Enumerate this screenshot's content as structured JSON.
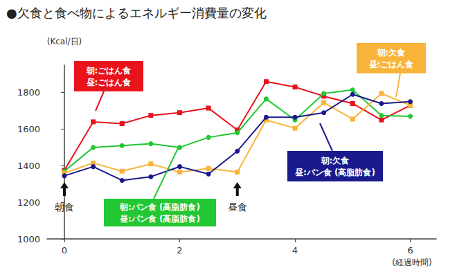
{
  "chart_data": {
    "type": "line",
    "title": "●欠食と食べ物によるエネルギー消費量の変化",
    "y_label": "(Kcal/日)",
    "x_label": "(経過時間)",
    "x": [
      0,
      0.5,
      1,
      1.5,
      2,
      2.5,
      3,
      3.5,
      4,
      4.5,
      5,
      5.5,
      6
    ],
    "xlim": [
      -0.3,
      6.45
    ],
    "xticks": [
      0,
      2,
      4,
      6
    ],
    "ylim": [
      1000,
      1950
    ],
    "yticks": [
      1000,
      1200,
      1400,
      1600,
      1800
    ],
    "grid": false,
    "series": [
      {
        "name": "朝:ごはん食\n昼:ごはん食",
        "color": "#e8131b",
        "marker": "square",
        "values": [
          1375,
          1640,
          1630,
          1675,
          1690,
          1715,
          1595,
          1860,
          1830,
          1780,
          1740,
          1650,
          1730
        ]
      },
      {
        "name": "朝:パン食 (高脂肪食)\n昼:パン食 (高脂肪食)",
        "color": "#22c733",
        "marker": "circle",
        "values": [
          1370,
          1500,
          1510,
          1520,
          1500,
          1555,
          1580,
          1765,
          1650,
          1795,
          1815,
          1675,
          1670
        ]
      },
      {
        "name": "朝:欠食\n昼:ごはん食",
        "color": "#f8b43a",
        "marker": "square",
        "values": [
          1360,
          1415,
          1370,
          1410,
          1365,
          1385,
          1365,
          1650,
          1605,
          1745,
          1655,
          1795,
          1730
        ]
      },
      {
        "name": "朝:欠食\n昼:パン食 (高脂肪食)",
        "color": "#1a1a8c",
        "marker": "circle",
        "values": [
          1345,
          1395,
          1320,
          1340,
          1395,
          1355,
          1480,
          1665,
          1665,
          1690,
          1790,
          1740,
          1750
        ]
      }
    ],
    "annotations": [
      {
        "text": "朝食",
        "x": 0
      },
      {
        "text": "昼食",
        "x": 3
      }
    ]
  }
}
